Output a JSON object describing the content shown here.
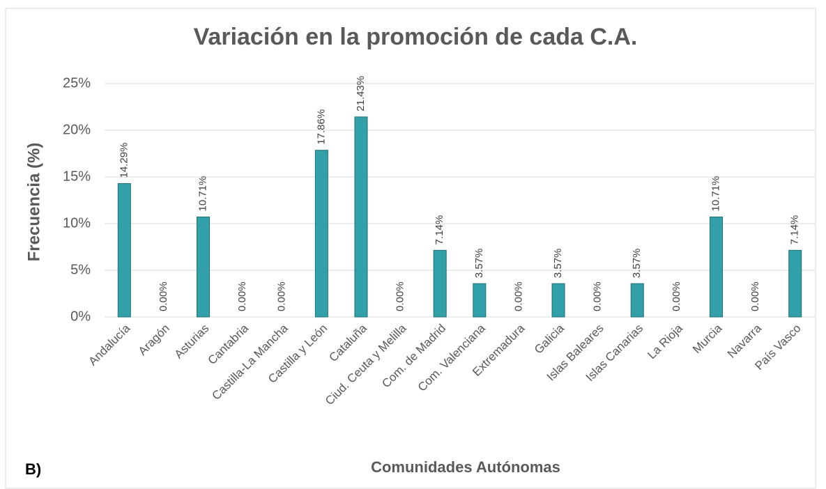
{
  "chart_data": {
    "type": "bar",
    "title": "Variación en la promoción de cada C.A.",
    "annotation": "B)",
    "x_label": "Comunidades Autónomas",
    "y_label": "Frecuencia (%)",
    "categories": [
      "Andalucía",
      "Aragón",
      "Asturias",
      "Cantabria",
      "Castilla-La Mancha",
      "Castilla y León",
      "Cataluña",
      "Ciud. Ceuta y Melilla",
      "Com. de Madrid",
      "Com. Valenciana",
      "Extremadura",
      "Galicia",
      "Islas Baleares",
      "Islas Canarias",
      "La Rioja",
      "Murcia",
      "Navarra",
      "País Vasco"
    ],
    "values": [
      14.29,
      0,
      10.71,
      0,
      0,
      17.86,
      21.43,
      0,
      7.14,
      3.57,
      0,
      3.57,
      0,
      3.57,
      0,
      10.71,
      0,
      7.14
    ],
    "value_labels": [
      "14.29%",
      "0.00%",
      "10.71%",
      "0.00%",
      "0.00%",
      "17.86%",
      "21.43%",
      "0.00%",
      "7.14%",
      "3.57%",
      "0.00%",
      "3.57%",
      "0.00%",
      "3.57%",
      "0.00%",
      "10.71%",
      "0.00%",
      "7.14%"
    ],
    "color": "#31a0a8",
    "ylim": [
      0,
      25
    ],
    "yticks": [
      {
        "value": 0,
        "label": "0%"
      },
      {
        "value": 5,
        "label": "5%"
      },
      {
        "value": 10,
        "label": "10%"
      },
      {
        "value": 15,
        "label": "15%"
      },
      {
        "value": 20,
        "label": "20%"
      },
      {
        "value": 25,
        "label": "25%"
      }
    ],
    "grid": true
  }
}
